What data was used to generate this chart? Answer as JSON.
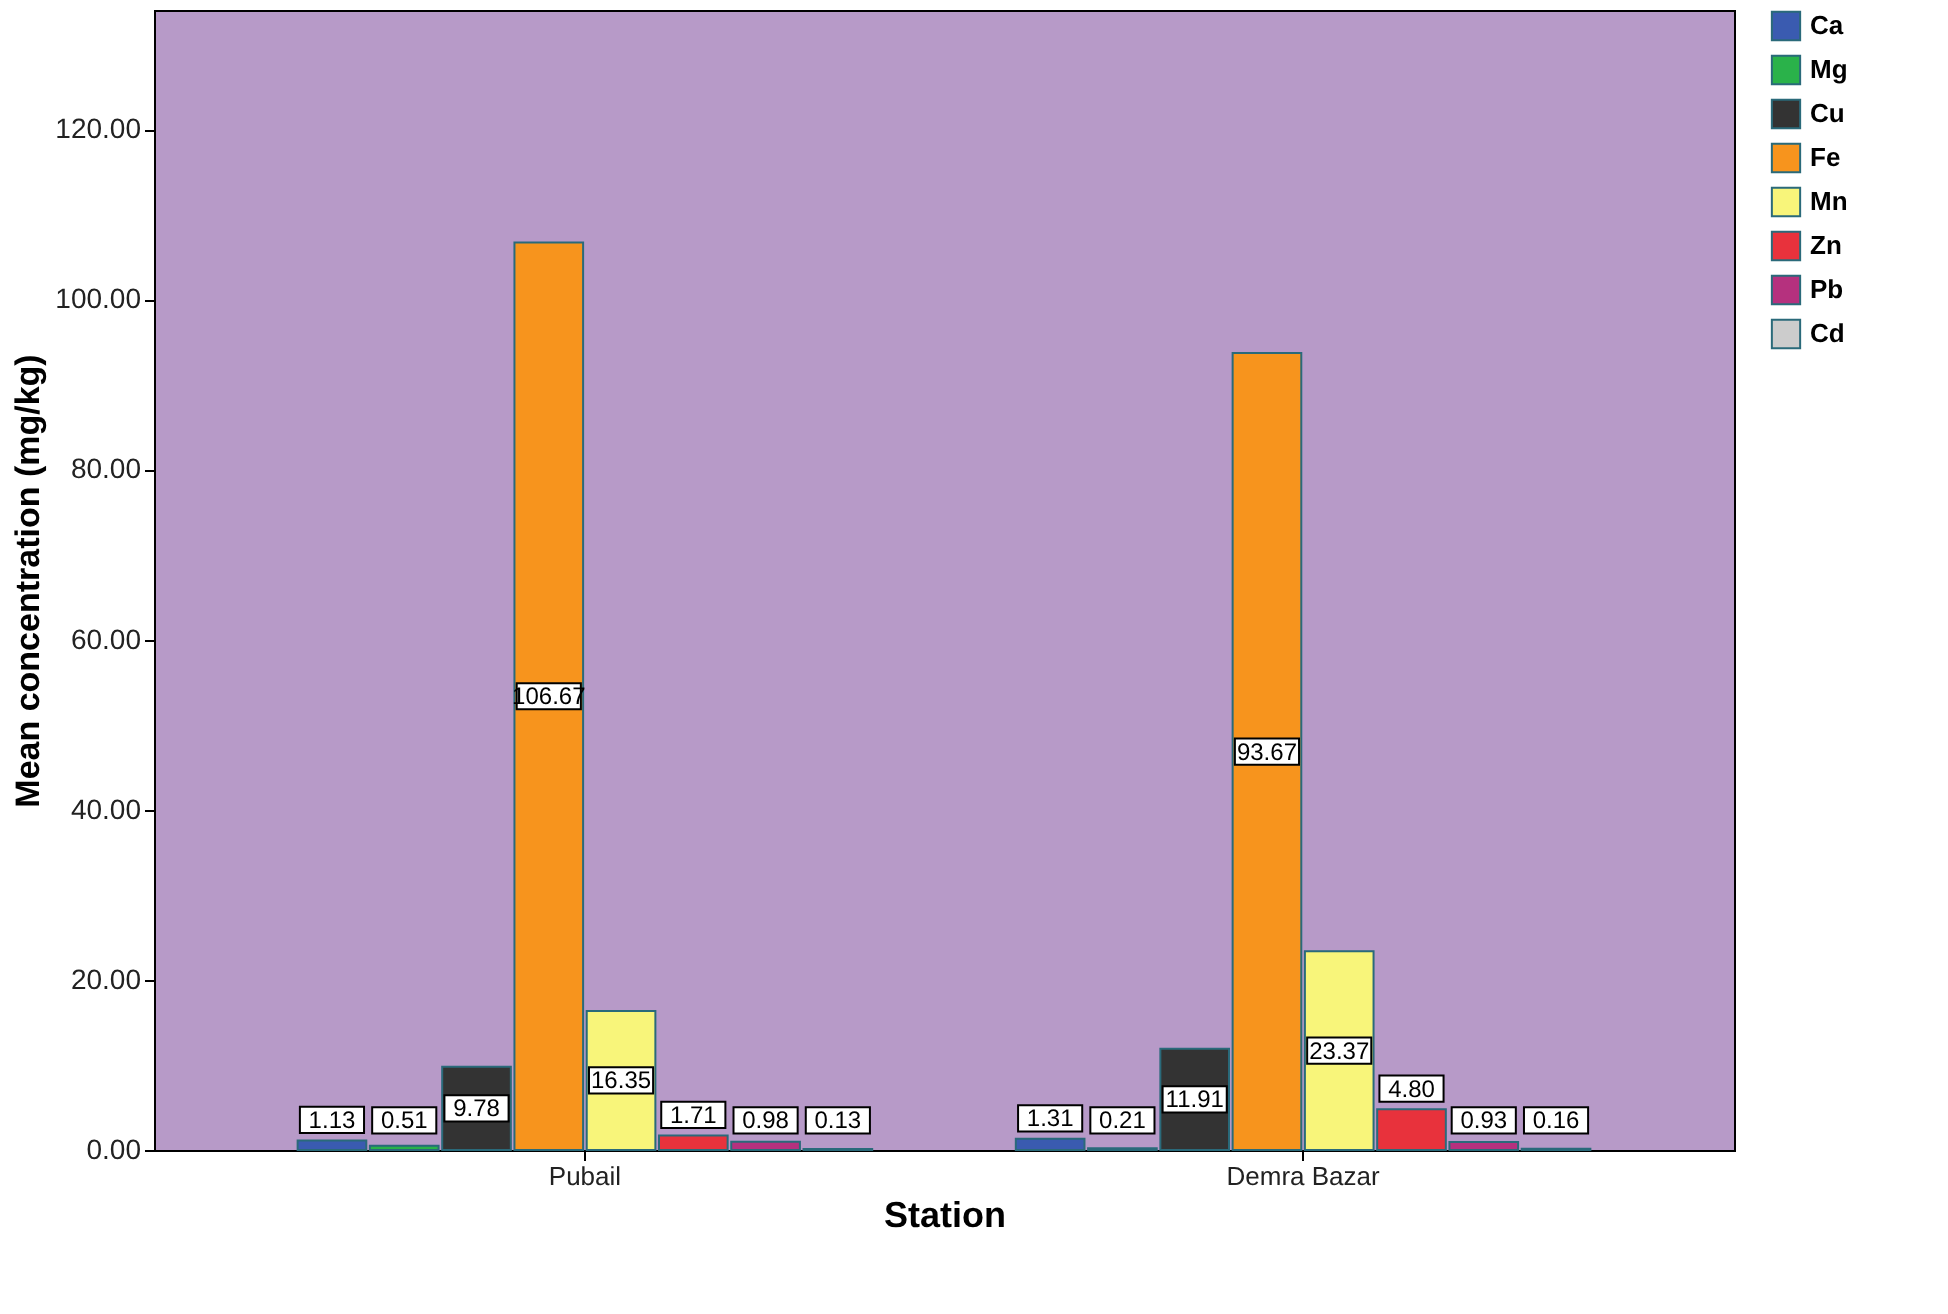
{
  "chart_data": {
    "type": "bar",
    "xlabel": "Station",
    "ylabel": "Mean concentration (mg/kg)",
    "categories": [
      "Pubail",
      "Demra Bazar"
    ],
    "series": [
      {
        "name": "Ca",
        "color": "#3a5bb0",
        "values": [
          1.13,
          1.31
        ],
        "value_labels": [
          "1.13",
          "1.31"
        ]
      },
      {
        "name": "Mg",
        "color": "#2ab24a",
        "values": [
          0.51,
          0.21
        ],
        "value_labels": [
          "0.51",
          "0.21"
        ]
      },
      {
        "name": "Cu",
        "color": "#333333",
        "values": [
          9.78,
          11.91
        ],
        "value_labels": [
          "9.78",
          "11.91"
        ]
      },
      {
        "name": "Fe",
        "color": "#f7941d",
        "values": [
          106.67,
          93.67
        ],
        "value_labels": [
          "106.67",
          "93.67"
        ]
      },
      {
        "name": "Mn",
        "color": "#f8f57a",
        "values": [
          16.35,
          23.37
        ],
        "value_labels": [
          "16.35",
          "23.37"
        ]
      },
      {
        "name": "Zn",
        "color": "#e8323c",
        "values": [
          1.71,
          4.8
        ],
        "value_labels": [
          "1.71",
          "4.80"
        ]
      },
      {
        "name": "Pb",
        "color": "#b5317e",
        "values": [
          0.98,
          0.93
        ],
        "value_labels": [
          "0.98",
          "0.93"
        ]
      },
      {
        "name": "Cd",
        "color": "#cccccc",
        "values": [
          0.13,
          0.16
        ],
        "value_labels": [
          "0.13",
          "0.16"
        ]
      }
    ],
    "ylim": [
      0,
      134
    ],
    "yticks": [
      {
        "value": 0,
        "label": "0.00"
      },
      {
        "value": 20,
        "label": "20.00"
      },
      {
        "value": 40,
        "label": "40.00"
      },
      {
        "value": 60,
        "label": "60.00"
      },
      {
        "value": 80,
        "label": "80.00"
      },
      {
        "value": 100,
        "label": "100.00"
      },
      {
        "value": 120,
        "label": "120.00"
      }
    ],
    "grid": false,
    "legend": "top right"
  }
}
